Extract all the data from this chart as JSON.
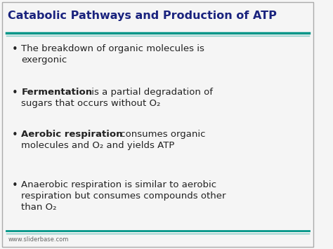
{
  "title": "Catabolic Pathways and Production of ATP",
  "title_color": "#1a237e",
  "title_fontsize": 11.5,
  "bg_color": "#f5f5f5",
  "border_color": "#aaaaaa",
  "divider_color1": "#009688",
  "divider_color2": "#80cbc4",
  "footer_text": "www.sliderbase.com",
  "footer_color": "#666666",
  "footer_fontsize": 6.0,
  "bullet_color": "#222222",
  "bullet_fontsize": 9.5,
  "bullets": [
    {
      "lines": [
        [
          {
            "text": "The breakdown of organic molecules is",
            "bold": false
          }
        ],
        [
          {
            "text": "exergonic",
            "bold": false
          }
        ]
      ]
    },
    {
      "lines": [
        [
          {
            "text": "Fermentation",
            "bold": true
          },
          {
            "text": " is a partial degradation of",
            "bold": false
          }
        ],
        [
          {
            "text": "sugars that occurs without O₂",
            "bold": false
          }
        ]
      ]
    },
    {
      "lines": [
        [
          {
            "text": "Aerobic respiration",
            "bold": true
          },
          {
            "text": " consumes organic",
            "bold": false
          }
        ],
        [
          {
            "text": "molecules and O₂ and yields ATP",
            "bold": false
          }
        ]
      ]
    },
    {
      "lines": [
        [
          {
            "text": "Anaerobic respiration is similar to aerobic",
            "bold": false
          }
        ],
        [
          {
            "text": "respiration but consumes compounds other",
            "bold": false
          }
        ],
        [
          {
            "text": "than O₂",
            "bold": false
          }
        ]
      ]
    }
  ]
}
